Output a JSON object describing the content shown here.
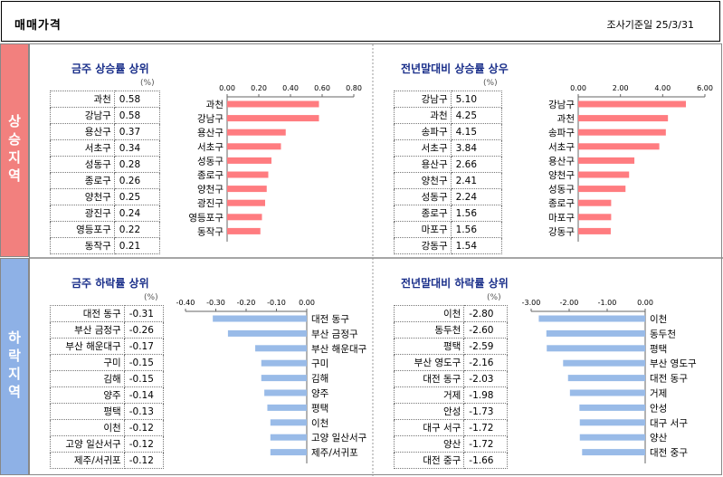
{
  "header": {
    "title": "매매가격",
    "date": "조사기준일  25/3/31"
  },
  "sections": {
    "up": "상승지역",
    "down": "하락지역"
  },
  "colors": {
    "up_bar": "#ff7c80",
    "down_bar": "#99bbe8",
    "up_side": "#f2807e",
    "down_side": "#8eb1e6",
    "title": "#1a2f8a"
  },
  "panels": {
    "weekly_up": {
      "title": "금주 상승률 상위",
      "unit": "(%)",
      "rows": [
        {
          "name": "과천",
          "value": "0.58"
        },
        {
          "name": "강남구",
          "value": "0.58"
        },
        {
          "name": "용산구",
          "value": "0.37"
        },
        {
          "name": "서초구",
          "value": "0.34"
        },
        {
          "name": "성동구",
          "value": "0.28"
        },
        {
          "name": "종로구",
          "value": "0.26"
        },
        {
          "name": "양천구",
          "value": "0.25"
        },
        {
          "name": "광진구",
          "value": "0.24"
        },
        {
          "name": "영등포구",
          "value": "0.22"
        },
        {
          "name": "동작구",
          "value": "0.21"
        }
      ]
    },
    "ytd_up": {
      "title": "전년말대비 상승률 상우",
      "unit": "(%)",
      "rows": [
        {
          "name": "강남구",
          "value": "5.10"
        },
        {
          "name": "과천",
          "value": "4.25"
        },
        {
          "name": "송파구",
          "value": "4.15"
        },
        {
          "name": "서초구",
          "value": "3.84"
        },
        {
          "name": "용산구",
          "value": "2.66"
        },
        {
          "name": "양천구",
          "value": "2.41"
        },
        {
          "name": "성동구",
          "value": "2.24"
        },
        {
          "name": "종로구",
          "value": "1.56"
        },
        {
          "name": "마포구",
          "value": "1.56"
        },
        {
          "name": "강동구",
          "value": "1.54"
        }
      ]
    },
    "weekly_down": {
      "title": "금주 하락률 상위",
      "unit": "(%)",
      "rows": [
        {
          "name": "대전 동구",
          "value": "-0.31"
        },
        {
          "name": "부산 금정구",
          "value": "-0.26"
        },
        {
          "name": "부산 해운대구",
          "value": "-0.17"
        },
        {
          "name": "구미",
          "value": "-0.15"
        },
        {
          "name": "김해",
          "value": "-0.15"
        },
        {
          "name": "양주",
          "value": "-0.14"
        },
        {
          "name": "평택",
          "value": "-0.13"
        },
        {
          "name": "이천",
          "value": "-0.12"
        },
        {
          "name": "고양 일산서구",
          "value": "-0.12"
        },
        {
          "name": "제주/서귀포",
          "value": "-0.12"
        }
      ]
    },
    "ytd_down": {
      "title": "전년말대비 하락률 상위",
      "unit": "(%)",
      "rows": [
        {
          "name": "이천",
          "value": "-2.80"
        },
        {
          "name": "동두천",
          "value": "-2.60"
        },
        {
          "name": "평택",
          "value": "-2.59"
        },
        {
          "name": "부산 영도구",
          "value": "-2.16"
        },
        {
          "name": "대전 동구",
          "value": "-2.03"
        },
        {
          "name": "거제",
          "value": "-1.98"
        },
        {
          "name": "안성",
          "value": "-1.73"
        },
        {
          "name": "대구 서구",
          "value": "-1.72"
        },
        {
          "name": "양산",
          "value": "-1.72"
        },
        {
          "name": "대전 중구",
          "value": "-1.66"
        }
      ]
    }
  },
  "chart_data": [
    {
      "type": "bar",
      "orientation": "horizontal",
      "categories": [
        "과천",
        "강남구",
        "용산구",
        "서초구",
        "성동구",
        "종로구",
        "양천구",
        "광진구",
        "영등포구",
        "동작구"
      ],
      "values": [
        0.58,
        0.58,
        0.37,
        0.34,
        0.28,
        0.26,
        0.25,
        0.24,
        0.22,
        0.21
      ],
      "ticks": [
        "0.00",
        "0.20",
        "0.40",
        "0.60",
        "0.80"
      ],
      "xlim": [
        0,
        0.8
      ]
    },
    {
      "type": "bar",
      "orientation": "horizontal",
      "categories": [
        "강남구",
        "과천",
        "송파구",
        "서초구",
        "용산구",
        "양천구",
        "성동구",
        "종로구",
        "마포구",
        "강동구"
      ],
      "values": [
        5.1,
        4.25,
        4.15,
        3.84,
        2.66,
        2.41,
        2.24,
        1.56,
        1.56,
        1.54
      ],
      "ticks": [
        "0.00",
        "2.00",
        "4.00",
        "6.00"
      ],
      "xlim": [
        0,
        6
      ]
    },
    {
      "type": "bar",
      "orientation": "horizontal",
      "categories": [
        "대전 동구",
        "부산 금정구",
        "부산 해운대구",
        "구미",
        "김해",
        "양주",
        "평택",
        "이천",
        "고양 일산서구",
        "제주/서귀포"
      ],
      "values": [
        -0.31,
        -0.26,
        -0.17,
        -0.15,
        -0.15,
        -0.14,
        -0.13,
        -0.12,
        -0.12,
        -0.12
      ],
      "ticks": [
        "-0.40",
        "-0.30",
        "-0.20",
        "-0.10",
        "0.00"
      ],
      "xlim": [
        -0.4,
        0
      ]
    },
    {
      "type": "bar",
      "orientation": "horizontal",
      "categories": [
        "이천",
        "동두천",
        "평택",
        "부산 영도구",
        "대전 동구",
        "거제",
        "안성",
        "대구 서구",
        "양산",
        "대전 중구"
      ],
      "values": [
        -2.8,
        -2.6,
        -2.59,
        -2.16,
        -2.03,
        -1.98,
        -1.73,
        -1.72,
        -1.72,
        -1.66
      ],
      "ticks": [
        "-3.00",
        "-2.00",
        "-1.00",
        "0.00"
      ],
      "xlim": [
        -3,
        0
      ]
    }
  ]
}
